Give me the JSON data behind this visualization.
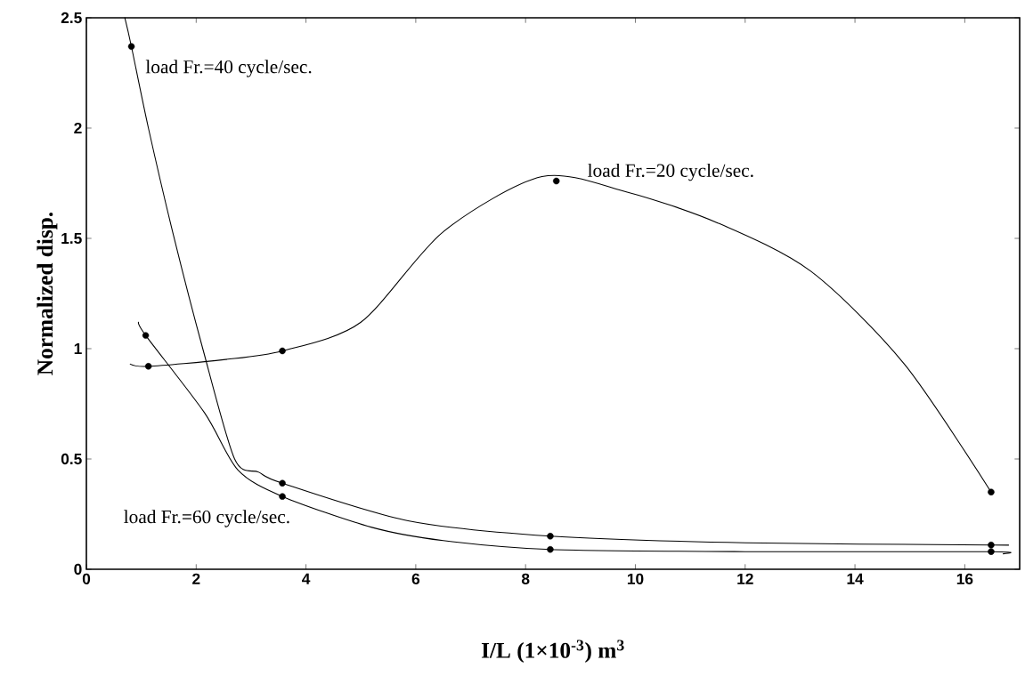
{
  "chart_data": {
    "type": "line",
    "xlabel": "I/L (1×10$^{-3}$) m$^{3}$",
    "ylabel": "Normalized disp.",
    "xlim": [
      0,
      17
    ],
    "ylim": [
      0,
      2.5
    ],
    "xticks": [
      0,
      2,
      4,
      6,
      8,
      10,
      12,
      14,
      16
    ],
    "yticks": [
      0,
      0.5,
      1,
      1.5,
      2,
      2.5
    ],
    "grid": false,
    "series": [
      {
        "color": "#000000",
        "marker": "none",
        "x": [
          0.7,
          0.82,
          1.13,
          1.6,
          2.12,
          2.7,
          3.14,
          3.57,
          5.86,
          8.45,
          12,
          16.48,
          16.6
        ],
        "values": [
          2.5,
          2.37,
          2.0,
          1.5,
          1.0,
          0.5,
          0.44,
          0.39,
          0.22,
          0.15,
          0.12,
          0.11,
          0.11
        ]
      },
      {
        "color": "#000000",
        "marker": "none",
        "x": [
          0.8,
          1.13,
          2.5,
          3.57,
          5,
          6.5,
          8.3,
          9.85,
          11.5,
          13.2,
          14.9,
          16.48
        ],
        "values": [
          0.93,
          0.92,
          0.95,
          0.99,
          1.12,
          1.53,
          1.78,
          1.71,
          1.57,
          1.35,
          0.93,
          0.35
        ]
      },
      {
        "color": "#000000",
        "marker": "none",
        "x": [
          0.95,
          1.08,
          2.15,
          2.76,
          3.57,
          5.2,
          6.5,
          8.45,
          12,
          16.48,
          16.7
        ],
        "values": [
          1.12,
          1.06,
          0.71,
          0.45,
          0.33,
          0.19,
          0.13,
          0.09,
          0.08,
          0.08,
          0.07
        ]
      },
      {
        "type": "scatter",
        "color": "#000000",
        "marker": "circle",
        "x": [
          0.82,
          3.57,
          8.45,
          16.48
        ],
        "values": [
          2.37,
          0.39,
          0.15,
          0.11
        ]
      },
      {
        "type": "scatter",
        "color": "#000000",
        "marker": "circle",
        "x": [
          1.13,
          3.57,
          8.56,
          16.48
        ],
        "values": [
          0.92,
          0.99,
          1.76,
          0.35
        ]
      },
      {
        "type": "scatter",
        "color": "#000000",
        "marker": "circle",
        "x": [
          1.08,
          3.57,
          8.45,
          16.48
        ],
        "values": [
          1.06,
          0.33,
          0.09,
          0.08
        ]
      }
    ],
    "annotations": [
      "load Fr.=40 cycle/sec.",
      "load Fr.=20 cycle/sec.",
      "load Fr.=60 cycle/sec."
    ]
  }
}
